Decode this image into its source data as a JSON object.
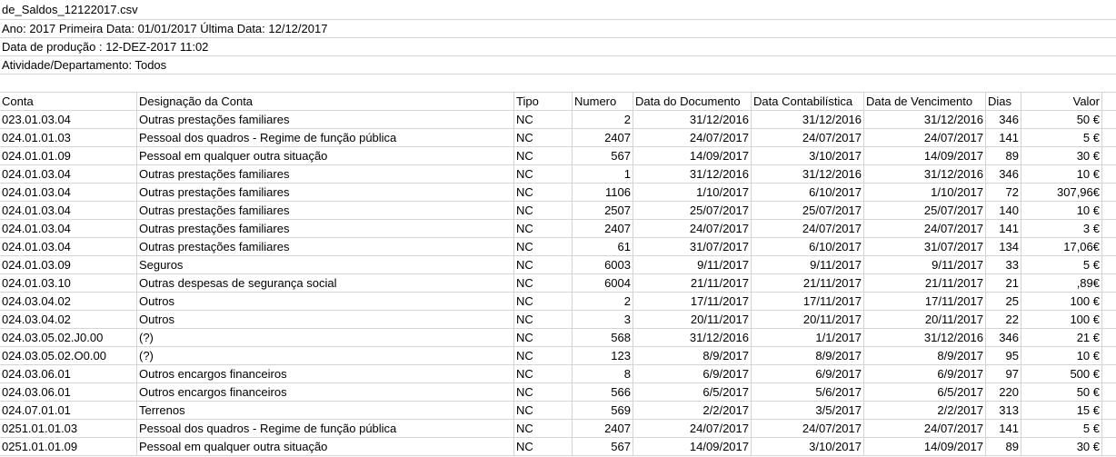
{
  "file_name": "de_Saldos_12122017.csv",
  "meta": {
    "line1": "Ano: 2017 Primeira Data: 01/01/2017 Última Data: 12/12/2017",
    "line2": "Data de produção : 12-DEZ-2017 11:02",
    "line3": "Atividade/Departamento: Todos"
  },
  "columns": [
    "Conta",
    "Designação da Conta",
    "Tipo",
    "Numero",
    "Data do Documento",
    "Data Contabilística",
    "Data de Vencimento",
    "Dias",
    "Valor"
  ],
  "rows": [
    [
      "023.01.03.04",
      "Outras prestações familiares",
      "NC",
      "2",
      "31/12/2016",
      "31/12/2016",
      "31/12/2016",
      "346",
      "50 €"
    ],
    [
      "024.01.01.03",
      "Pessoal dos quadros - Regime de função pública",
      "NC",
      "2407",
      "24/07/2017",
      "24/07/2017",
      "24/07/2017",
      "141",
      "5 €"
    ],
    [
      "024.01.01.09",
      "Pessoal em qualquer outra situação",
      "NC",
      "567",
      "14/09/2017",
      "3/10/2017",
      "14/09/2017",
      "89",
      "30 €"
    ],
    [
      "024.01.03.04",
      "Outras prestações familiares",
      "NC",
      "1",
      "31/12/2016",
      "31/12/2016",
      "31/12/2016",
      "346",
      "10 €"
    ],
    [
      "024.01.03.04",
      "Outras prestações familiares",
      "NC",
      "1106",
      "1/10/2017",
      "6/10/2017",
      "1/10/2017",
      "72",
      "307,96€"
    ],
    [
      "024.01.03.04",
      "Outras prestações familiares",
      "NC",
      "2507",
      "25/07/2017",
      "25/07/2017",
      "25/07/2017",
      "140",
      "10 €"
    ],
    [
      "024.01.03.04",
      "Outras prestações familiares",
      "NC",
      "2407",
      "24/07/2017",
      "24/07/2017",
      "24/07/2017",
      "141",
      "3 €"
    ],
    [
      "024.01.03.04",
      "Outras prestações familiares",
      "NC",
      "61",
      "31/07/2017",
      "6/10/2017",
      "31/07/2017",
      "134",
      "17,06€"
    ],
    [
      "024.01.03.09",
      "Seguros",
      "NC",
      "6003",
      "9/11/2017",
      "9/11/2017",
      "9/11/2017",
      "33",
      "5 €"
    ],
    [
      "024.01.03.10",
      "Outras despesas de segurança social",
      "NC",
      "6004",
      "21/11/2017",
      "21/11/2017",
      "21/11/2017",
      "21",
      ",89€"
    ],
    [
      "024.03.04.02",
      "Outros",
      "NC",
      "2",
      "17/11/2017",
      "17/11/2017",
      "17/11/2017",
      "25",
      "100 €"
    ],
    [
      "024.03.04.02",
      "Outros",
      "NC",
      "3",
      "20/11/2017",
      "20/11/2017",
      "20/11/2017",
      "22",
      "100 €"
    ],
    [
      "024.03.05.02.J0.00",
      "(?)",
      "NC",
      "568",
      "31/12/2016",
      "1/1/2017",
      "31/12/2016",
      "346",
      "21 €"
    ],
    [
      "024.03.05.02.O0.00",
      "(?)",
      "NC",
      "123",
      "8/9/2017",
      "8/9/2017",
      "8/9/2017",
      "95",
      "10 €"
    ],
    [
      "024.03.06.01",
      "Outros encargos financeiros",
      "NC",
      "8",
      "6/9/2017",
      "6/9/2017",
      "6/9/2017",
      "97",
      "500 €"
    ],
    [
      "024.03.06.01",
      "Outros encargos financeiros",
      "NC",
      "566",
      "6/5/2017",
      "5/6/2017",
      "6/5/2017",
      "220",
      "50 €"
    ],
    [
      "024.07.01.01",
      "Terrenos",
      "NC",
      "569",
      "2/2/2017",
      "3/5/2017",
      "2/2/2017",
      "313",
      "15 €"
    ],
    [
      "0251.01.01.03",
      "Pessoal dos quadros - Regime de função pública",
      "NC",
      "2407",
      "24/07/2017",
      "24/07/2017",
      "24/07/2017",
      "141",
      "5 €"
    ],
    [
      "0251.01.01.09",
      "Pessoal em qualquer outra situação",
      "NC",
      "567",
      "14/09/2017",
      "3/10/2017",
      "14/09/2017",
      "89",
      "30 €"
    ]
  ]
}
